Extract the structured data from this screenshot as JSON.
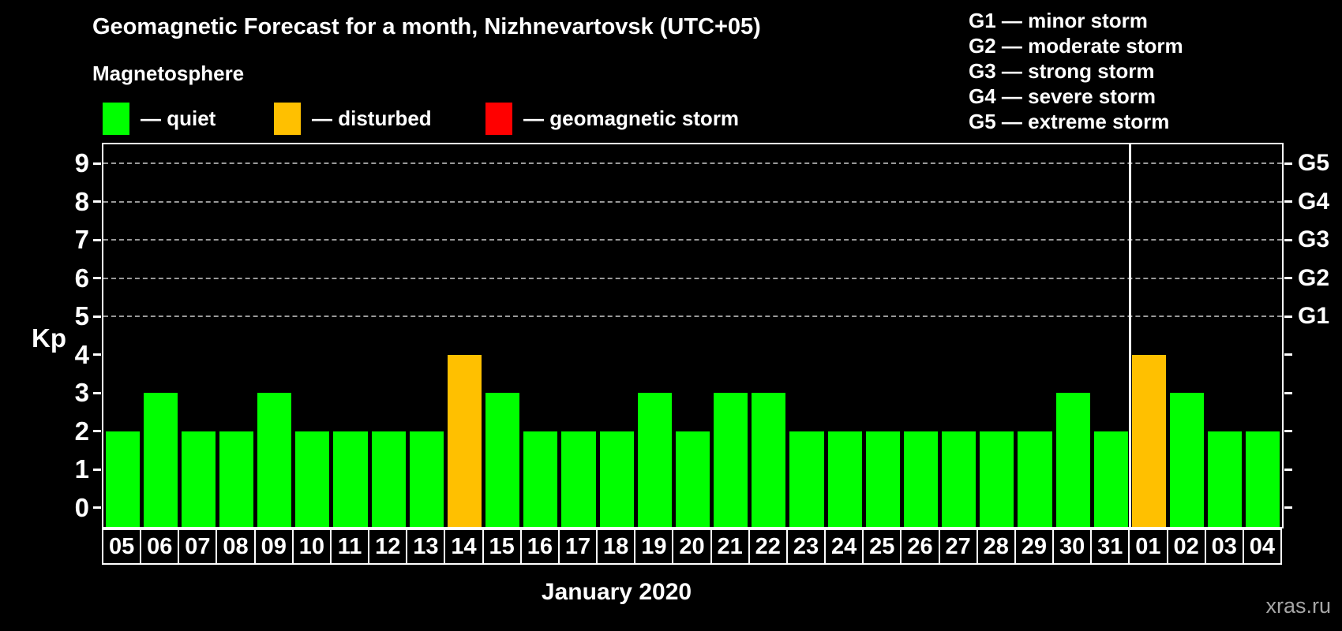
{
  "title": "Geomagnetic Forecast for a month, Nizhnevartovsk (UTC+05)",
  "subtitle": "Magnetosphere",
  "legend": {
    "items": [
      {
        "label": "— quiet",
        "color": "#00ff00",
        "status": "quiet"
      },
      {
        "label": "— disturbed",
        "color": "#ffc000",
        "status": "disturbed"
      },
      {
        "label": "— geomagnetic storm",
        "color": "#ff0000",
        "status": "storm"
      }
    ]
  },
  "storm_legend": [
    "G1 — minor storm",
    "G2 — moderate storm",
    "G3 — strong storm",
    "G4 — severe storm",
    "G5 — extreme storm"
  ],
  "watermark": "xras.ru",
  "chart_data": {
    "type": "bar",
    "title": "Geomagnetic Forecast for a month, Nizhnevartovsk (UTC+05)",
    "xlabel": "January 2020",
    "ylabel": "Kp",
    "ylim": [
      -0.5,
      9.5
    ],
    "yticks": [
      0,
      1,
      2,
      3,
      4,
      5,
      6,
      7,
      8,
      9
    ],
    "gridlines_at_kp": [
      5,
      6,
      7,
      8,
      9
    ],
    "grid": "dashed horizontal lines at Kp 5-9 only",
    "legend_position": "top-left",
    "categories": [
      "05",
      "06",
      "07",
      "08",
      "09",
      "10",
      "11",
      "12",
      "13",
      "14",
      "15",
      "16",
      "17",
      "18",
      "19",
      "20",
      "21",
      "22",
      "23",
      "24",
      "25",
      "26",
      "27",
      "28",
      "29",
      "30",
      "31",
      "01",
      "02",
      "03",
      "04"
    ],
    "values": [
      2,
      3,
      2,
      2,
      3,
      2,
      2,
      2,
      2,
      4,
      3,
      2,
      2,
      2,
      3,
      2,
      3,
      3,
      2,
      2,
      2,
      2,
      2,
      2,
      2,
      3,
      2,
      4,
      3,
      2,
      2
    ],
    "statuses": [
      "quiet",
      "quiet",
      "quiet",
      "quiet",
      "quiet",
      "quiet",
      "quiet",
      "quiet",
      "quiet",
      "disturbed",
      "quiet",
      "quiet",
      "quiet",
      "quiet",
      "quiet",
      "quiet",
      "quiet",
      "quiet",
      "quiet",
      "quiet",
      "quiet",
      "quiet",
      "quiet",
      "quiet",
      "quiet",
      "quiet",
      "quiet",
      "disturbed",
      "quiet",
      "quiet",
      "quiet"
    ],
    "status_colors": {
      "quiet": "#00ff00",
      "disturbed": "#ffc000",
      "storm": "#ff0000"
    },
    "right_axis_labels": [
      {
        "kp": 9,
        "label": "G5"
      },
      {
        "kp": 8,
        "label": "G4"
      },
      {
        "kp": 7,
        "label": "G3"
      },
      {
        "kp": 6,
        "label": "G2"
      },
      {
        "kp": 5,
        "label": "G1"
      }
    ],
    "month_separator_after_index": 26,
    "axis_color": "#ffffff",
    "gridline_color": "#999999",
    "background_color": "#000000"
  }
}
